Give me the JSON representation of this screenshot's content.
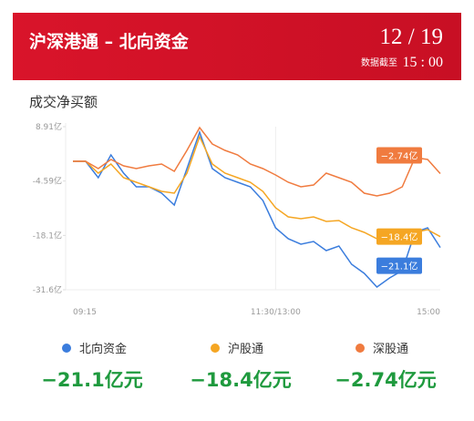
{
  "header": {
    "title": "沪深港通 – 北向资金",
    "date": "12 / 19",
    "asof_label": "数据截至",
    "asof_time": "15 : 00"
  },
  "chart_data": {
    "type": "line",
    "title": "成交净买额",
    "categories": [
      "09:15",
      null,
      null,
      null,
      null,
      null,
      null,
      null,
      null,
      null,
      null,
      null,
      null,
      null,
      null,
      null,
      "11:30/13:00",
      null,
      null,
      null,
      null,
      null,
      null,
      null,
      null,
      null,
      null,
      null,
      null,
      "15:00"
    ],
    "ylim": [
      -31.6,
      8.91
    ],
    "yticks": [
      {
        "value": 8.91,
        "label": "8.91亿"
      },
      {
        "value": -4.59,
        "label": "-4.59亿"
      },
      {
        "value": -18.1,
        "label": "-18.1亿"
      },
      {
        "value": -31.6,
        "label": "-31.6亿"
      }
    ],
    "series": [
      {
        "name": "北向资金",
        "color": "#3b7ddd",
        "values": [
          0.31,
          0.31,
          -3.76,
          1.89,
          -2.63,
          -6.03,
          -6.03,
          -7.61,
          -10.55,
          -1.5,
          7.55,
          -1.5,
          -3.76,
          -4.89,
          -6.03,
          -9.42,
          -16.21,
          -18.92,
          -20.28,
          -19.6,
          -21.87,
          -20.73,
          -25.26,
          -27.52,
          -30.91,
          -28.66,
          -26.85,
          -17.34,
          -16.21,
          -21.1
        ],
        "value_labels": [
          null,
          null,
          null,
          null,
          null,
          null,
          null,
          null,
          null,
          null,
          null,
          null,
          null,
          null,
          null,
          null,
          null,
          null,
          null,
          null,
          null,
          null,
          null,
          null,
          null,
          null,
          null,
          null,
          null,
          "−21.1亿"
        ],
        "total": {
          "value": -21.1,
          "label": "−21.1亿元"
        }
      },
      {
        "name": "沪股通",
        "color": "#f5a623",
        "values": [
          0.31,
          0.31,
          -2.63,
          -0.37,
          -3.76,
          -4.89,
          -6.03,
          -7.16,
          -7.61,
          -2.63,
          6.42,
          -0.37,
          -2.63,
          -3.76,
          -4.89,
          -7.16,
          -11.23,
          -13.49,
          -13.95,
          -13.49,
          -14.62,
          -14.4,
          -16.21,
          -17.34,
          -18.92,
          -18.92,
          -18.02,
          -17.34,
          -16.66,
          -18.4
        ],
        "value_labels": [
          null,
          null,
          null,
          null,
          null,
          null,
          null,
          null,
          null,
          null,
          null,
          null,
          null,
          null,
          null,
          null,
          null,
          null,
          null,
          null,
          null,
          null,
          null,
          null,
          null,
          null,
          null,
          null,
          null,
          "−18.4亿"
        ],
        "total": {
          "value": -18.4,
          "label": "−18.4亿元"
        }
      },
      {
        "name": "深股通",
        "color": "#f07b3f",
        "values": [
          0.31,
          0.31,
          -1.5,
          0.76,
          -0.82,
          -1.5,
          -0.82,
          -0.37,
          -2.18,
          3.03,
          8.68,
          4.61,
          3.03,
          1.9,
          -0.37,
          -1.5,
          -3.08,
          -4.89,
          -6.03,
          -5.57,
          -2.63,
          -3.76,
          -4.89,
          -7.61,
          -8.29,
          -7.61,
          -6.03,
          1.22,
          0.76,
          -2.74
        ],
        "value_labels": [
          null,
          null,
          null,
          null,
          null,
          null,
          null,
          null,
          null,
          null,
          null,
          null,
          null,
          null,
          null,
          null,
          null,
          null,
          null,
          null,
          null,
          null,
          null,
          null,
          null,
          null,
          null,
          null,
          null,
          "−2.74亿"
        ],
        "total": {
          "value": -2.74,
          "label": "−2.74亿元"
        }
      }
    ]
  }
}
